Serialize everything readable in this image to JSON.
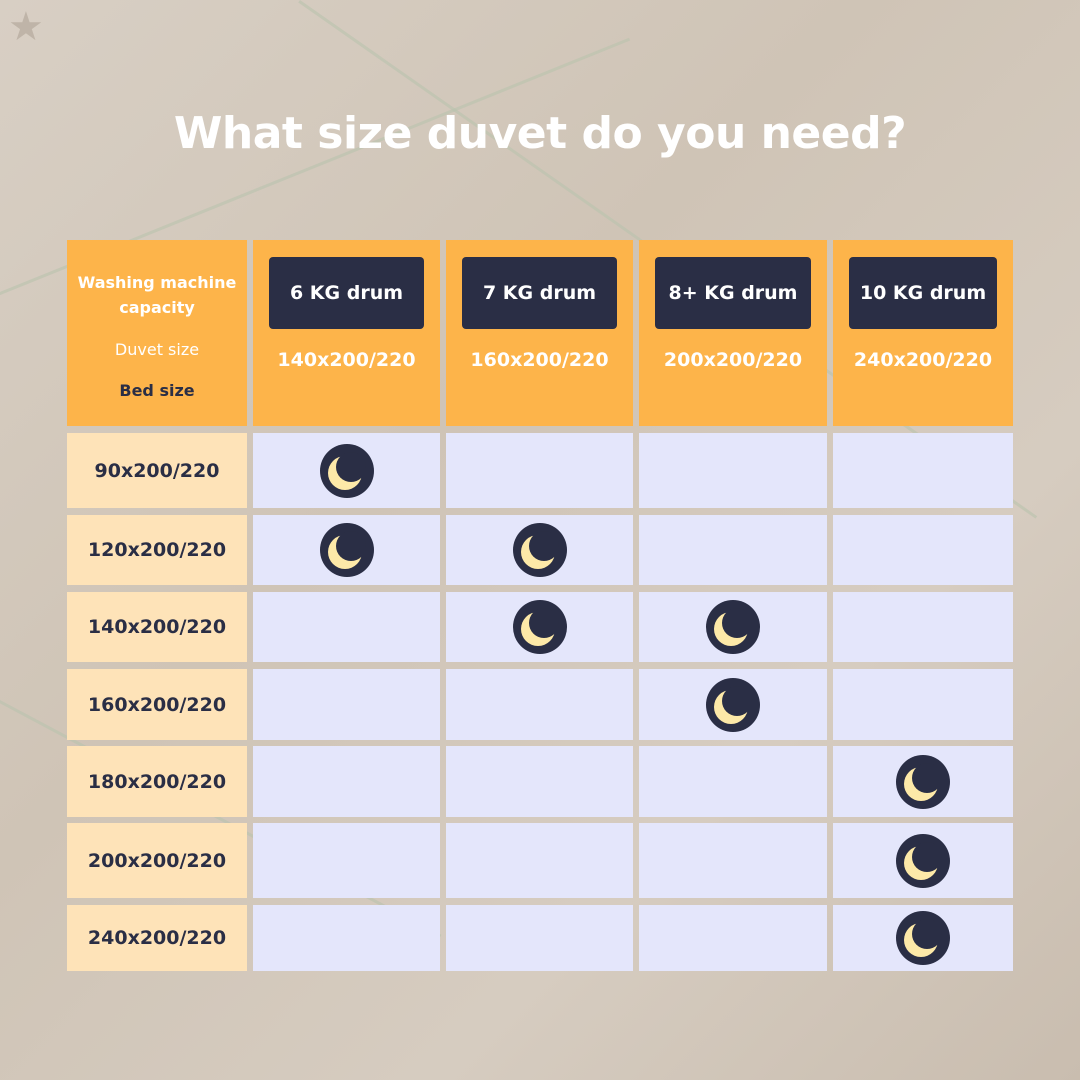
{
  "title": "What size duvet do you need?",
  "corner": {
    "capacity_label": "Washing machine capacity",
    "duvet_label": "Duvet size",
    "bed_label": "Bed size"
  },
  "columns": [
    {
      "drum": "6 KG drum",
      "duvet": "140x200/220"
    },
    {
      "drum": "7 KG drum",
      "duvet": "160x200/220"
    },
    {
      "drum": "8+ KG drum",
      "duvet": "200x200/220"
    },
    {
      "drum": "10 KG drum",
      "duvet": "240x200/220"
    }
  ],
  "rows": [
    {
      "bed": "90x200/220",
      "match": [
        true,
        false,
        false,
        false
      ]
    },
    {
      "bed": "120x200/220",
      "match": [
        true,
        true,
        false,
        false
      ]
    },
    {
      "bed": "140x200/220",
      "match": [
        false,
        true,
        true,
        false
      ]
    },
    {
      "bed": "160x200/220",
      "match": [
        false,
        false,
        true,
        false
      ]
    },
    {
      "bed": "180x200/220",
      "match": [
        false,
        false,
        false,
        true
      ]
    },
    {
      "bed": "200x200/220",
      "match": [
        false,
        false,
        false,
        true
      ]
    },
    {
      "bed": "240x200/220",
      "match": [
        false,
        false,
        false,
        true
      ]
    }
  ],
  "icons": {
    "match": "moon-icon",
    "decor": "star-icon"
  },
  "colors": {
    "header": "#fdb44a",
    "bed_cell": "#fee3b8",
    "grid_cell": "#e4e6fb",
    "dark": "#2a2e45",
    "moon": "#fde9a8"
  }
}
